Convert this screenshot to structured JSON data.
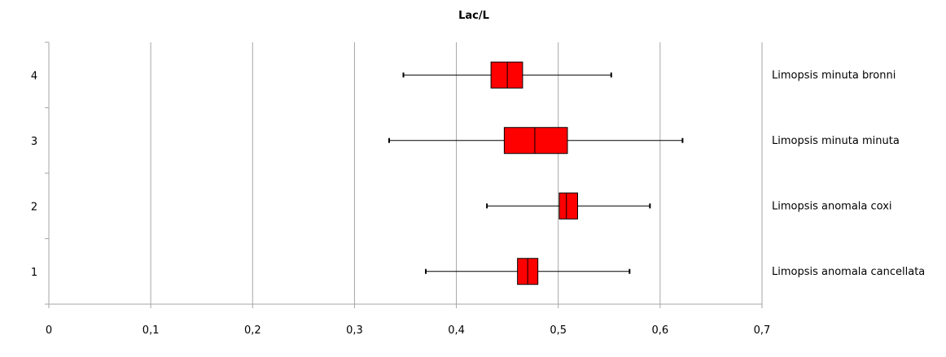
{
  "chart_data": {
    "type": "boxplot",
    "orientation": "horizontal",
    "title": "Lac/L",
    "xlim": [
      0,
      0.7
    ],
    "x_ticks": [
      0,
      0.1,
      0.2,
      0.3,
      0.4,
      0.5,
      0.6,
      0.7
    ],
    "x_tick_labels": [
      "0",
      "0,1",
      "0,2",
      "0,3",
      "0,4",
      "0,5",
      "0,6",
      "0,7"
    ],
    "y_tick_labels": [
      "1",
      "2",
      "3",
      "4"
    ],
    "grid": "vertical",
    "box_color": "#ff0000",
    "series": [
      {
        "name": "Limopsis anomala cancellata",
        "position": 1,
        "min": 0.37,
        "q1": 0.46,
        "median": 0.47,
        "q3": 0.48,
        "max": 0.57
      },
      {
        "name": "Limopsis anomala coxi",
        "position": 2,
        "min": 0.43,
        "q1": 0.501,
        "median": 0.508,
        "q3": 0.519,
        "max": 0.59
      },
      {
        "name": "Limopsis minuta minuta",
        "position": 3,
        "min": 0.334,
        "q1": 0.447,
        "median": 0.477,
        "q3": 0.509,
        "max": 0.622
      },
      {
        "name": "Limopsis minuta bronni",
        "position": 4,
        "min": 0.348,
        "q1": 0.434,
        "median": 0.45,
        "q3": 0.465,
        "max": 0.552
      }
    ]
  }
}
